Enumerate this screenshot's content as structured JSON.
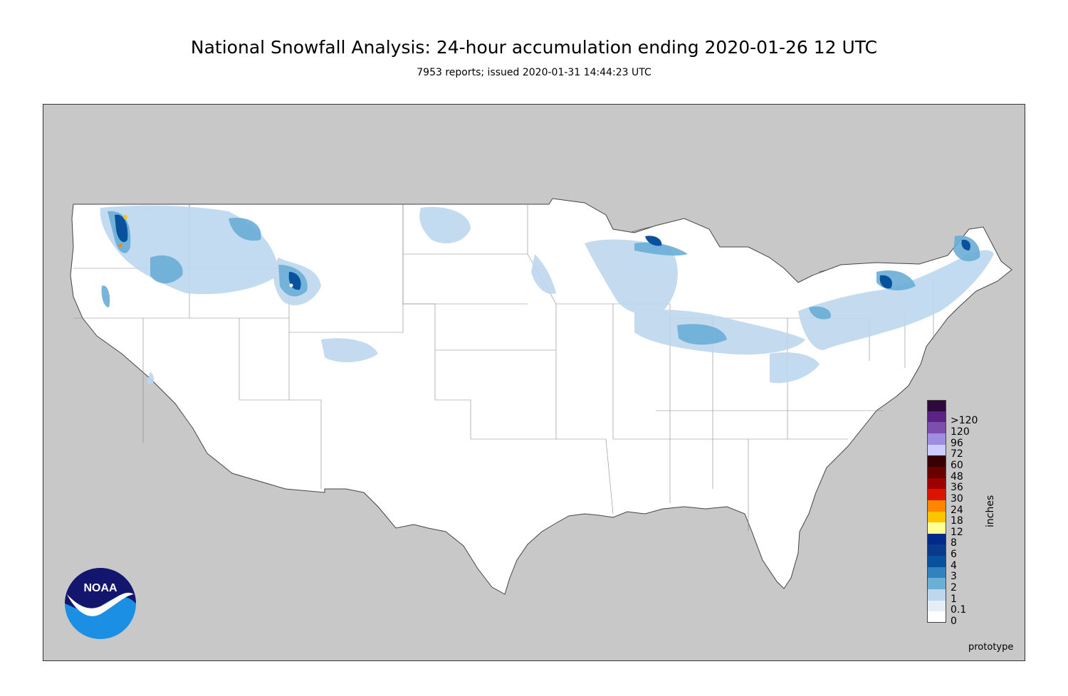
{
  "title": "National Snowfall Analysis: 24-hour accumulation ending 2020-01-26 12 UTC",
  "subtitle": "7953 reports; issued 2020-01-31 14:44:23 UTC",
  "legend": {
    "units": "inches",
    "items": [
      {
        "label": "0",
        "color": "#ffffff"
      },
      {
        "label": "0.1",
        "color": "#e4eef9"
      },
      {
        "label": "1",
        "color": "#bdd7ee"
      },
      {
        "label": "2",
        "color": "#6baed6"
      },
      {
        "label": "3",
        "color": "#3182bd"
      },
      {
        "label": "4",
        "color": "#08519c"
      },
      {
        "label": "6",
        "color": "#083b8c"
      },
      {
        "label": "8",
        "color": "#002a8a"
      },
      {
        "label": "12",
        "color": "#ffff96"
      },
      {
        "label": "18",
        "color": "#ffc400"
      },
      {
        "label": "24",
        "color": "#ff8700"
      },
      {
        "label": "30",
        "color": "#db1400"
      },
      {
        "label": "36",
        "color": "#9e0000"
      },
      {
        "label": "48",
        "color": "#690000"
      },
      {
        "label": "60",
        "color": "#360000"
      },
      {
        "label": "72",
        "color": "#ccccff"
      },
      {
        "label": "96",
        "color": "#9f8ddd"
      },
      {
        "label": "120",
        "color": "#7e4eac"
      },
      {
        "label": ">120",
        "color": "#5b2383"
      },
      {
        "label": "",
        "color": "#2e0a3c"
      }
    ]
  },
  "footer_note": "prototype",
  "logo_text": "NOAA"
}
